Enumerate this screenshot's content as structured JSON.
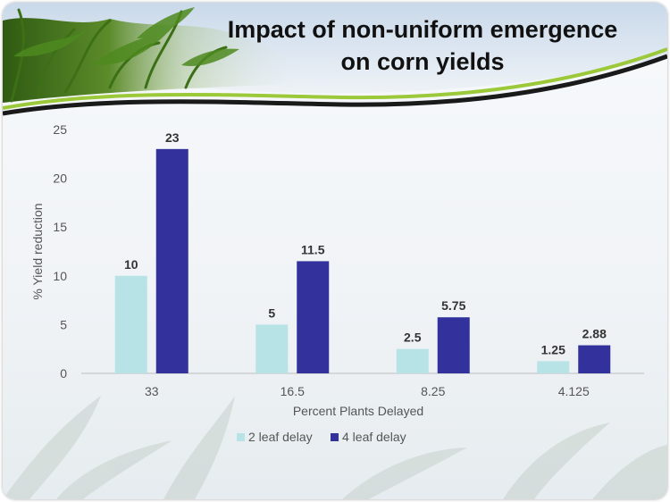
{
  "title": {
    "line1": "Impact of non-uniform emergence",
    "line2": "on corn yields"
  },
  "colors": {
    "series_2_leaf": "#b8e3e6",
    "series_4_leaf": "#33329c",
    "banner_curve": "#1a1a1a",
    "banner_green": "#9bc93a"
  },
  "chart_data": {
    "type": "bar",
    "categories": [
      "33",
      "16.5",
      "8.25",
      "4.125"
    ],
    "series": [
      {
        "name": "2 leaf delay",
        "values": [
          10,
          5,
          2.5,
          1.25
        ],
        "labels": [
          "10",
          "5",
          "2.5",
          "1.25"
        ]
      },
      {
        "name": "4 leaf delay",
        "values": [
          23,
          11.5,
          5.75,
          2.88
        ],
        "labels": [
          "23",
          "11.5",
          "5.75",
          "2.88"
        ]
      }
    ],
    "xlabel": "Percent Plants Delayed",
    "ylabel": "% Yield reduction",
    "ylim": [
      0,
      25
    ],
    "yticks": [
      0,
      5,
      10,
      15,
      20,
      25
    ],
    "grid": false,
    "legend": "bottom"
  }
}
